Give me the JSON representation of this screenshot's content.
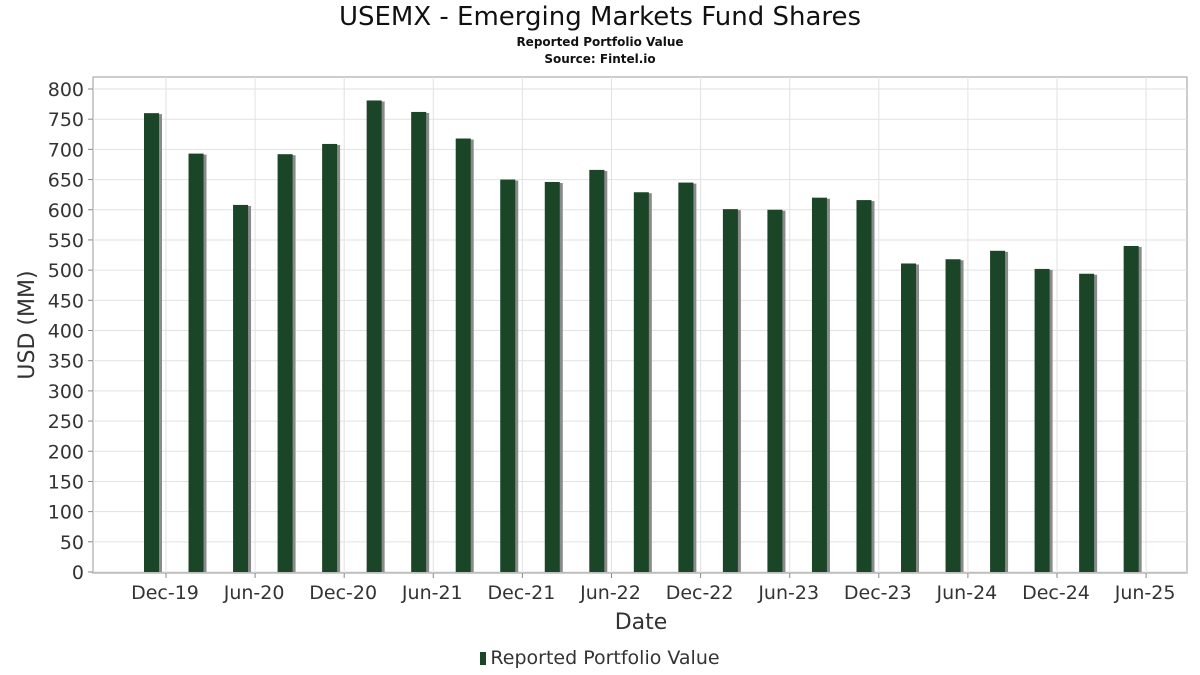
{
  "chart_data": {
    "type": "bar",
    "title": "USEMX - Emerging Markets Fund Shares",
    "subtitle_lines": [
      "Reported Portfolio Value",
      "Source: Fintel.io"
    ],
    "xlabel": "Date",
    "ylabel": "USD (MM)",
    "ylim": [
      0,
      820
    ],
    "yticks": [
      0,
      50,
      100,
      150,
      200,
      250,
      300,
      350,
      400,
      450,
      500,
      550,
      600,
      650,
      700,
      750,
      800
    ],
    "xtick_labels": [
      "Dec-19",
      "Jun-20",
      "Dec-20",
      "Jun-21",
      "Dec-21",
      "Jun-22",
      "Dec-22",
      "Jun-23",
      "Dec-23",
      "Jun-24",
      "Dec-24",
      "Jun-25"
    ],
    "grid": true,
    "legend_position": "bottom-center",
    "bar_color": "#1a4526",
    "shadow_color": "#8a8a8a",
    "series": [
      {
        "name": "Reported Portfolio Value",
        "values": [
          760,
          693,
          608,
          692,
          709,
          781,
          762,
          718,
          650,
          646,
          666,
          629,
          645,
          601,
          600,
          620,
          616,
          511,
          518,
          532,
          502,
          494,
          540
        ]
      }
    ]
  },
  "legend": {
    "label": "Reported Portfolio Value"
  }
}
